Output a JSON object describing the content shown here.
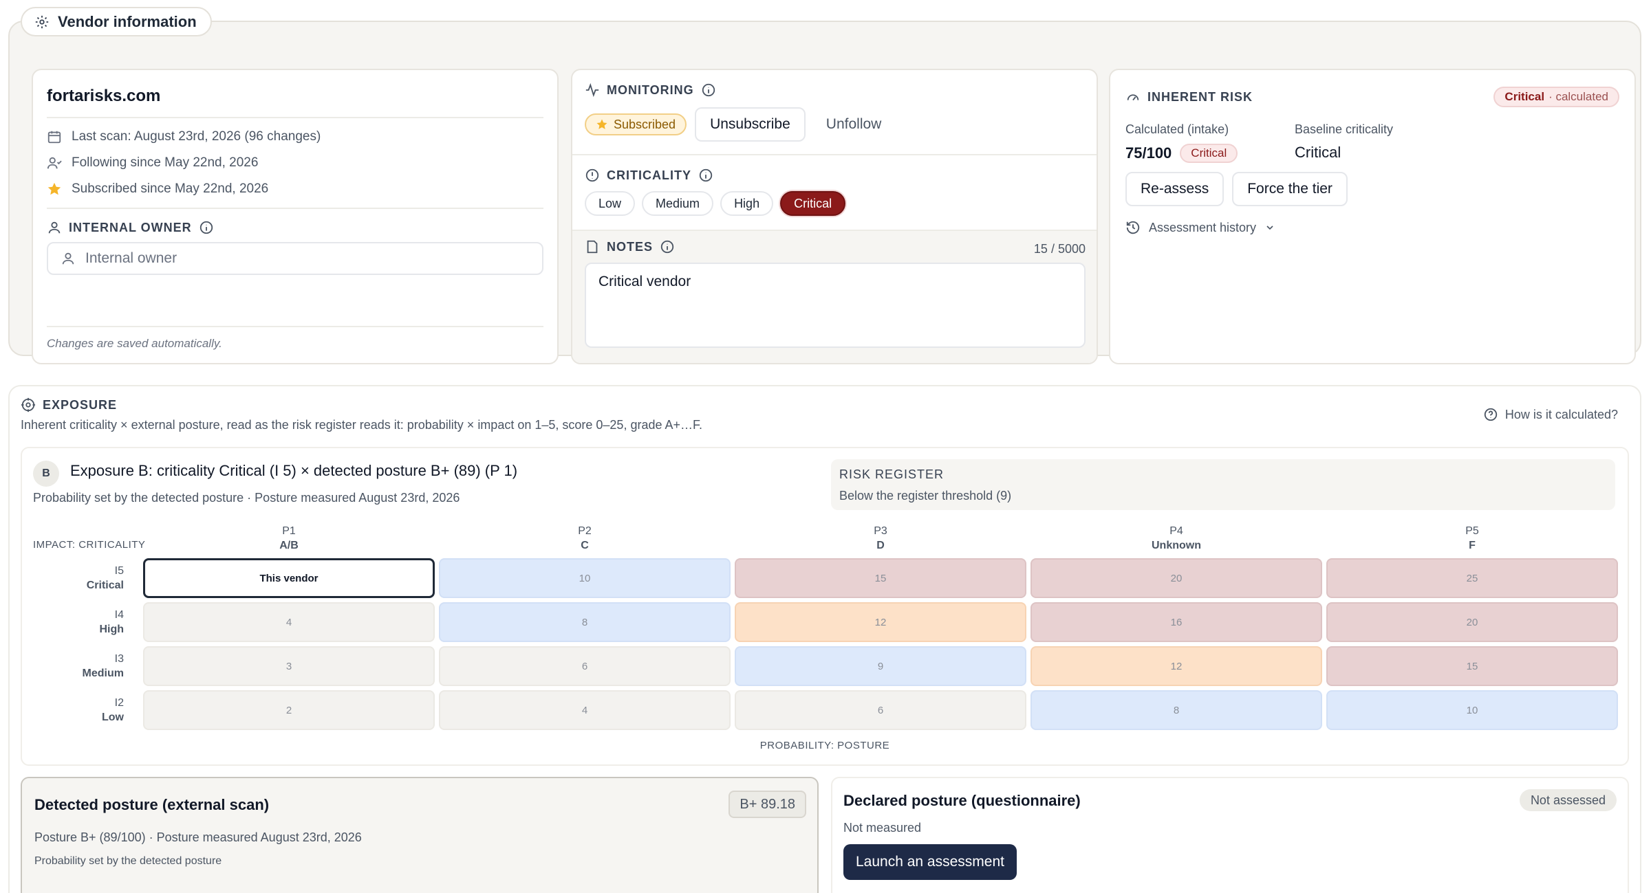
{
  "vendor_section": {
    "tab_label": "Vendor information",
    "domain": "fortarisks.com",
    "last_scan": "Last scan: August 23rd, 2026 (96 changes)",
    "following_since": "Following since May 22nd, 2026",
    "subscribed_since": "Subscribed since May 22nd, 2026",
    "internal_owner_label": "INTERNAL OWNER",
    "internal_owner_placeholder": "Internal owner",
    "saved_note": "Changes are saved automatically."
  },
  "monitoring": {
    "label": "MONITORING",
    "subscribed_badge": "Subscribed",
    "unsubscribe_label": "Unsubscribe",
    "unfollow_label": "Unfollow"
  },
  "criticality": {
    "label": "CRITICALITY",
    "options": [
      "Low",
      "Medium",
      "High",
      "Critical"
    ],
    "selected": "Critical"
  },
  "notes": {
    "label": "NOTES",
    "count": "15 / 5000",
    "value": "Critical vendor"
  },
  "inherent_risk": {
    "label": "INHERENT RISK",
    "badge_level": "Critical",
    "badge_suffix": "· calculated",
    "calculated_label": "Calculated (intake)",
    "calculated_score": "75/100",
    "calculated_badge": "Critical",
    "baseline_label": "Baseline criticality",
    "baseline_value": "Critical",
    "reassess_label": "Re-assess",
    "force_label": "Force the tier",
    "history_label": "Assessment history"
  },
  "exposure": {
    "label": "EXPOSURE",
    "description": "Inherent criticality × external posture, read as the risk register reads it: probability × impact on 1–5, score 0–25, grade A+…F.",
    "help_label": "How is it calculated?",
    "grade": "B",
    "title": "Exposure B: criticality Critical (I 5) × detected posture B+ (89) (P 1)",
    "subtitle": "Probability set by the detected posture · Posture measured August 23rd, 2026",
    "register_title": "RISK REGISTER",
    "register_text": "Below the register threshold (9)",
    "impact_axis_label": "IMPACT: CRITICALITY",
    "probability_axis_label": "PROBABILITY: POSTURE",
    "columns": [
      {
        "code": "P1",
        "name": "A/B"
      },
      {
        "code": "P2",
        "name": "C"
      },
      {
        "code": "P3",
        "name": "D"
      },
      {
        "code": "P4",
        "name": "Unknown"
      },
      {
        "code": "P5",
        "name": "F"
      }
    ],
    "rows": [
      {
        "code": "I5",
        "name": "Critical",
        "cells": [
          "This vendor",
          "10",
          "15",
          "20",
          "25"
        ],
        "levels": [
          "current",
          "blue",
          "red",
          "red",
          "red"
        ]
      },
      {
        "code": "I4",
        "name": "High",
        "cells": [
          "4",
          "8",
          "12",
          "16",
          "20"
        ],
        "levels": [
          "low",
          "blue",
          "orange",
          "red",
          "red"
        ]
      },
      {
        "code": "I3",
        "name": "Medium",
        "cells": [
          "3",
          "6",
          "9",
          "12",
          "15"
        ],
        "levels": [
          "low",
          "low",
          "blue",
          "orange",
          "red"
        ]
      },
      {
        "code": "I2",
        "name": "Low",
        "cells": [
          "2",
          "4",
          "6",
          "8",
          "10"
        ],
        "levels": [
          "low",
          "low",
          "low",
          "blue",
          "blue"
        ]
      }
    ]
  },
  "detected_posture": {
    "title": "Detected posture (external scan)",
    "score": "B+ 89.18",
    "line1": "Posture B+ (89/100) · Posture measured August 23rd, 2026",
    "line2": "Probability set by the detected posture"
  },
  "declared_posture": {
    "title": "Declared posture (questionnaire)",
    "badge": "Not assessed",
    "subtitle": "Not measured",
    "button_label": "Launch an assessment"
  },
  "colors": {
    "critical": "#8b1a1a",
    "subscribed_bg": "#fff4dc",
    "primary_button": "#1e2a47",
    "cell_low": "#f3f2ef",
    "cell_blue": "#dde9fb",
    "cell_orange": "#fde1c8",
    "cell_red": "#e8d1d2"
  }
}
